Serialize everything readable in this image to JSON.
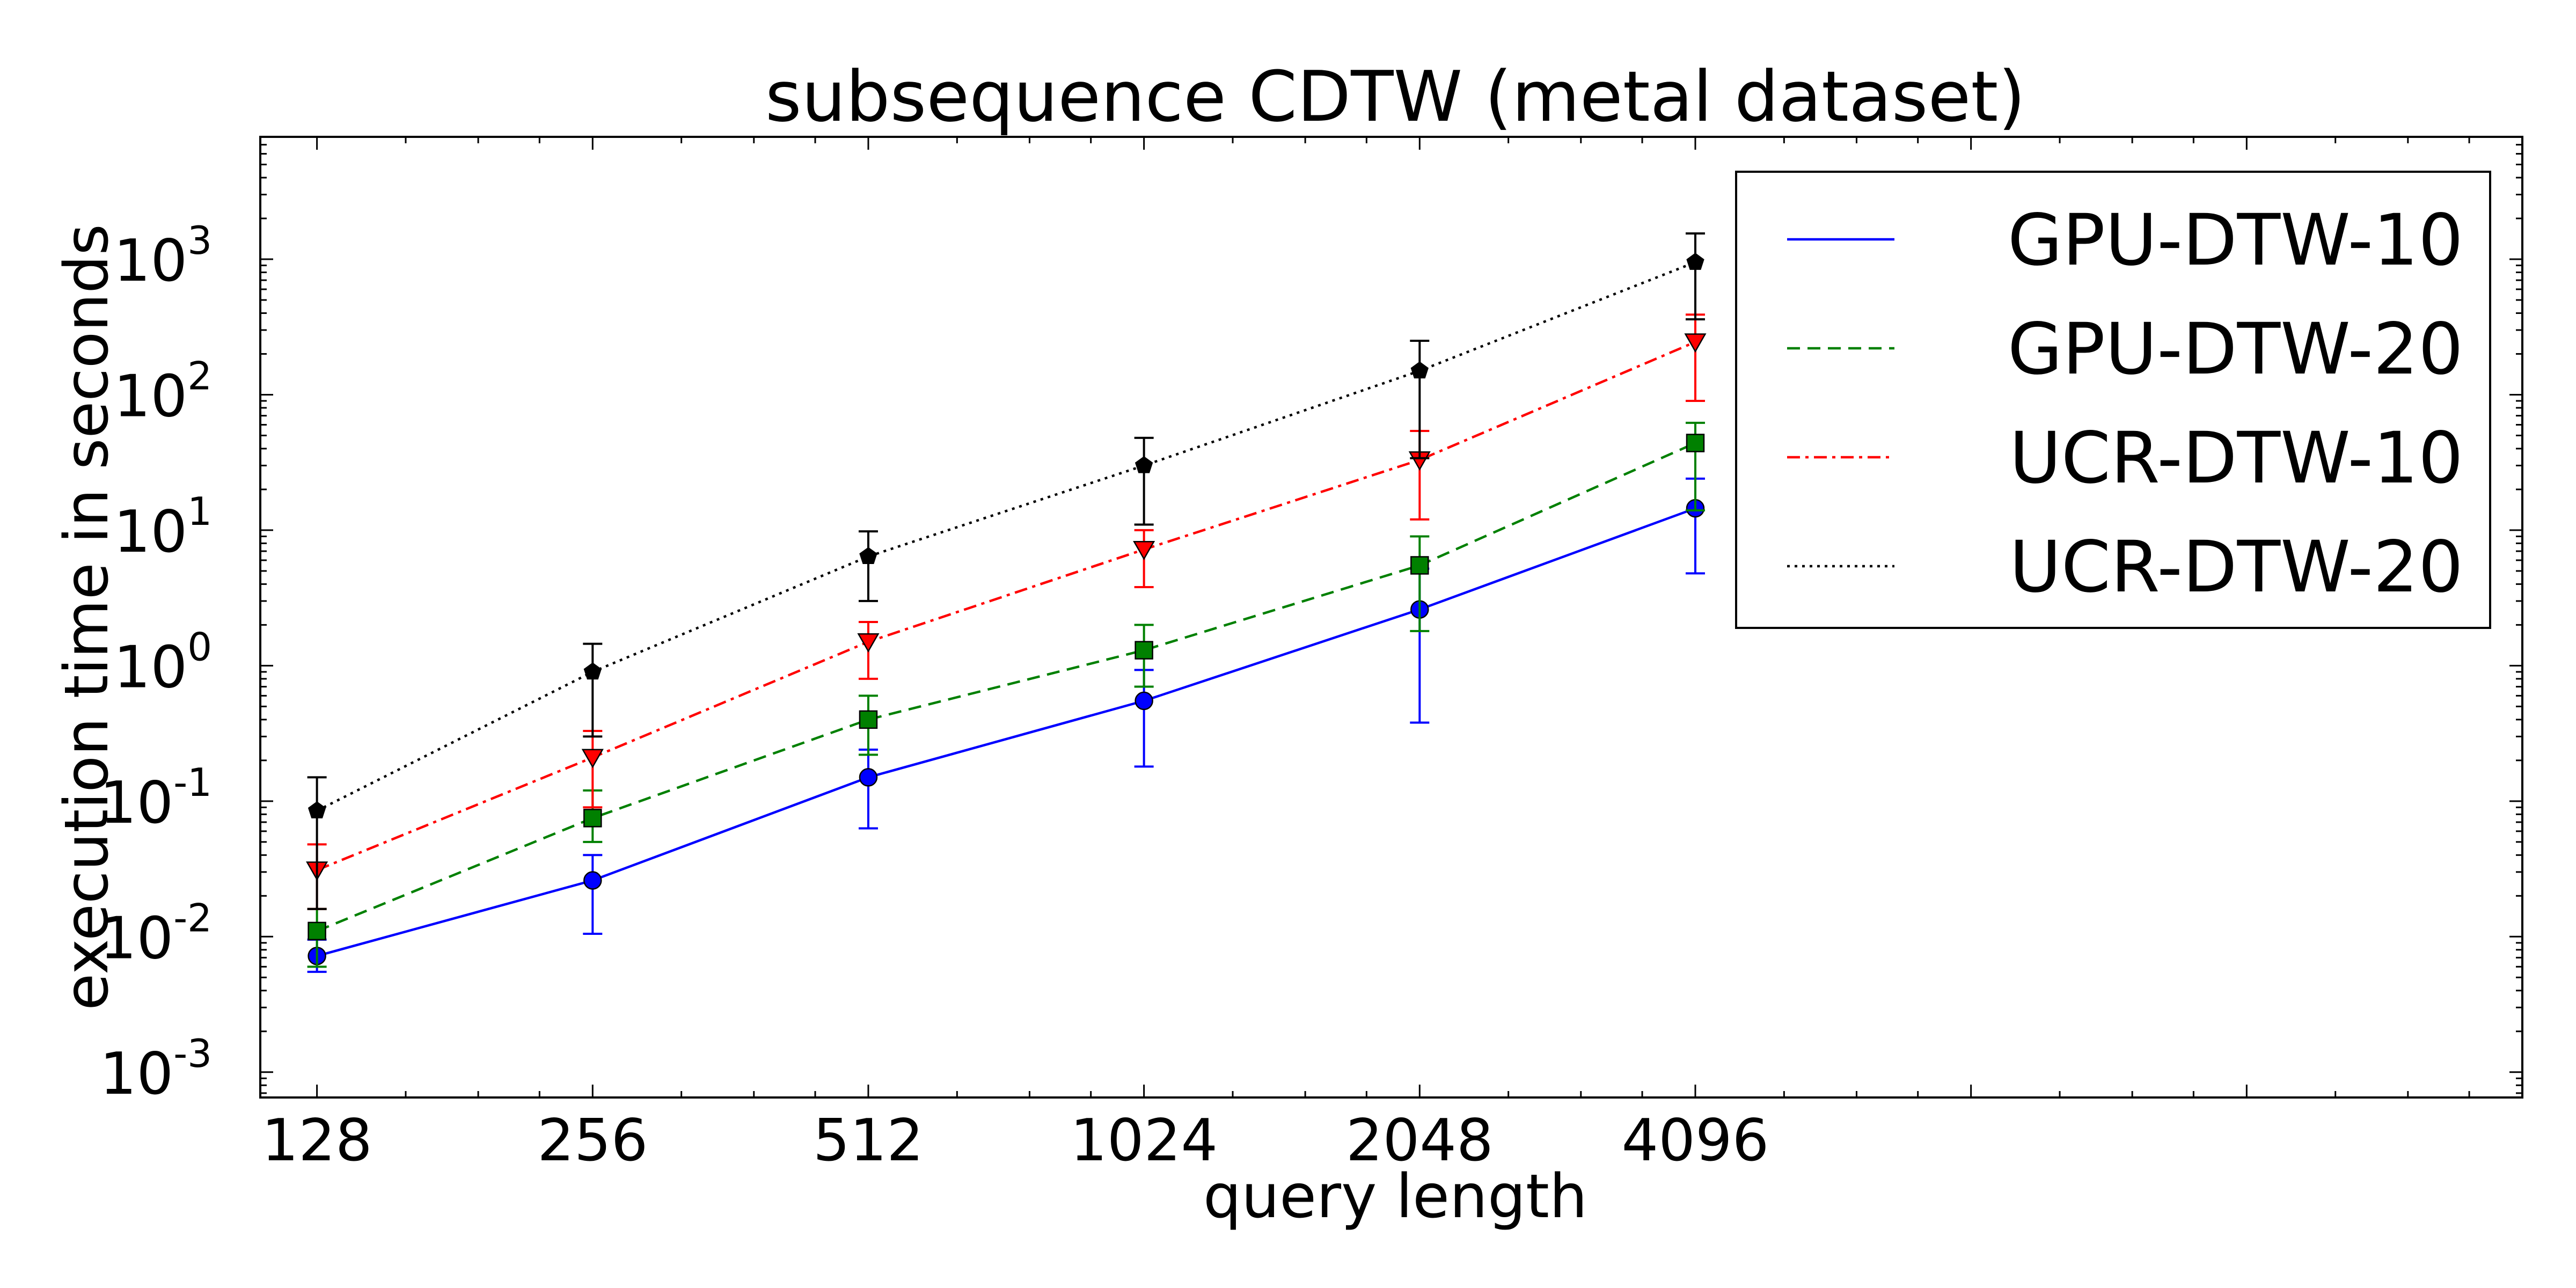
{
  "chart_data": {
    "type": "line",
    "title": "subsequence CDTW (metal dataset)",
    "xlabel": "query length",
    "ylabel": "execution time in seconds",
    "x_scale": "log2",
    "y_scale": "log10",
    "x": [
      128,
      256,
      512,
      1024,
      2048,
      4096
    ],
    "x_tick_labels": [
      "128",
      "256",
      "512",
      "1024",
      "2048",
      "4096"
    ],
    "xlim": [
      111,
      32768
    ],
    "ylim": [
      0.00065,
      8000
    ],
    "y_tick_values": [
      0.001,
      0.01,
      0.1,
      1,
      10,
      100,
      1000
    ],
    "y_tick_labels": [
      {
        "base": "10",
        "exp": "-3"
      },
      {
        "base": "10",
        "exp": "-2"
      },
      {
        "base": "10",
        "exp": "-1"
      },
      {
        "base": "10",
        "exp": "0"
      },
      {
        "base": "10",
        "exp": "1"
      },
      {
        "base": "10",
        "exp": "2"
      },
      {
        "base": "10",
        "exp": "3"
      }
    ],
    "grid": false,
    "legend_position": "top-right",
    "series": [
      {
        "name": "GPU-DTW-10",
        "color": "#0000ff",
        "line_style": "solid",
        "marker": "circle",
        "values": [
          0.0072,
          0.026,
          0.15,
          0.55,
          2.6,
          14.5
        ],
        "error_low": [
          0.0055,
          0.0105,
          0.063,
          0.18,
          0.38,
          4.8
        ],
        "error_high": [
          0.0095,
          0.04,
          0.24,
          0.93,
          5.2,
          24
        ]
      },
      {
        "name": "GPU-DTW-20",
        "color": "#008000",
        "line_style": "dashed",
        "marker": "square",
        "values": [
          0.011,
          0.075,
          0.4,
          1.3,
          5.5,
          44
        ],
        "error_low": [
          0.006,
          0.05,
          0.22,
          0.7,
          1.8,
          14
        ],
        "error_high": [
          0.016,
          0.12,
          0.6,
          2.0,
          9.0,
          62
        ]
      },
      {
        "name": "UCR-DTW-10",
        "color": "#ff0000",
        "line_style": "dashdot",
        "marker": "triangle-down",
        "values": [
          0.031,
          0.21,
          1.5,
          7.2,
          33,
          245
        ],
        "error_low": [
          0.016,
          0.09,
          0.8,
          3.8,
          12,
          90
        ],
        "error_high": [
          0.048,
          0.33,
          2.1,
          10,
          54,
          390
        ]
      },
      {
        "name": "UCR-DTW-20",
        "color": "#000000",
        "line_style": "dotted",
        "marker": "pentagon",
        "values": [
          0.085,
          0.9,
          6.4,
          30,
          150,
          950
        ],
        "error_low": [
          0.016,
          0.3,
          3.0,
          11,
          34,
          360
        ],
        "error_high": [
          0.15,
          1.45,
          9.8,
          48,
          250,
          1550
        ]
      }
    ]
  }
}
